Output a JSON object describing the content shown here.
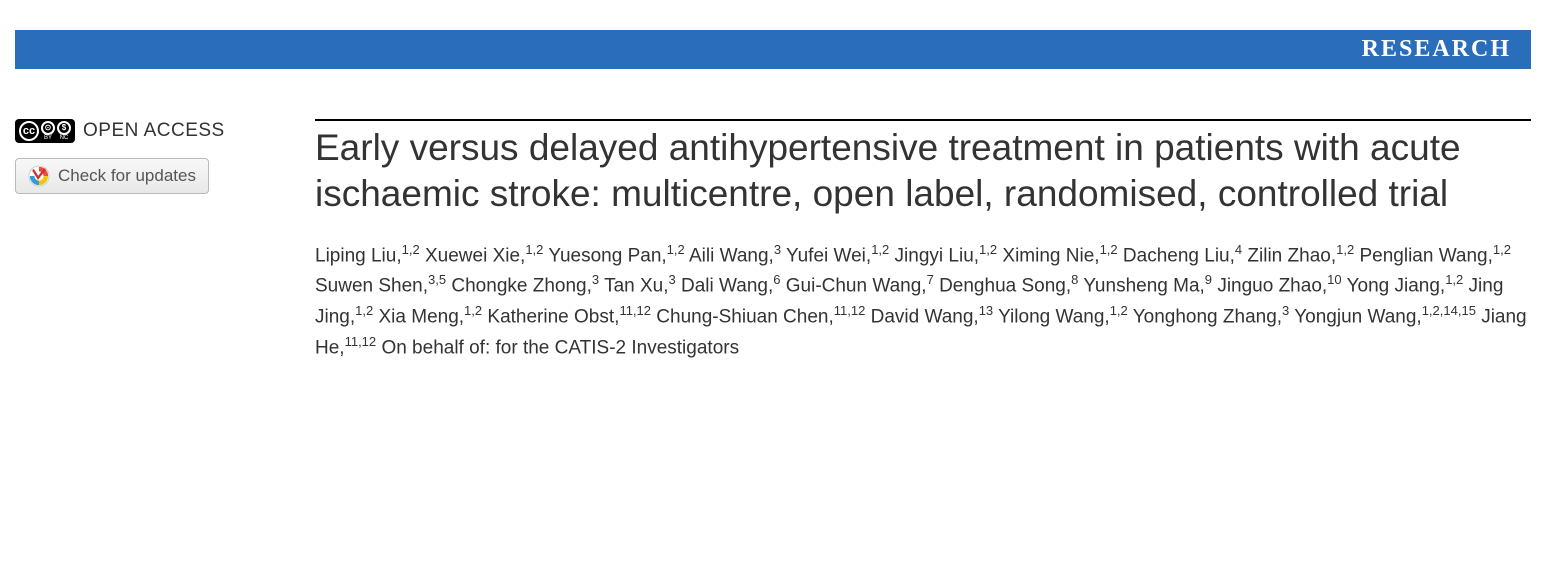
{
  "banner": {
    "label": "RESEARCH",
    "background_color": "#2a6ebb",
    "text_color": "#ffffff"
  },
  "sidebar": {
    "open_access_label": "OPEN ACCESS",
    "check_updates_label": "Check for updates"
  },
  "article": {
    "title": "Early versus delayed antihypertensive treatment in patients with acute ischaemic stroke: multicentre, open label, randomised, controlled trial",
    "authors": [
      {
        "name": "Liping Liu",
        "affil": "1,2"
      },
      {
        "name": "Xuewei Xie",
        "affil": "1,2"
      },
      {
        "name": "Yuesong Pan",
        "affil": "1,2"
      },
      {
        "name": "Aili Wang",
        "affil": "3"
      },
      {
        "name": "Yufei Wei",
        "affil": "1,2"
      },
      {
        "name": "Jingyi Liu",
        "affil": "1,2"
      },
      {
        "name": "Ximing Nie",
        "affil": "1,2"
      },
      {
        "name": "Dacheng Liu",
        "affil": "4"
      },
      {
        "name": "Zilin Zhao",
        "affil": "1,2"
      },
      {
        "name": "Penglian Wang",
        "affil": "1,2"
      },
      {
        "name": "Suwen Shen",
        "affil": "3,5"
      },
      {
        "name": "Chongke Zhong",
        "affil": "3"
      },
      {
        "name": "Tan Xu",
        "affil": "3"
      },
      {
        "name": "Dali Wang",
        "affil": "6"
      },
      {
        "name": "Gui-Chun Wang",
        "affil": "7"
      },
      {
        "name": "Denghua Song",
        "affil": "8"
      },
      {
        "name": "Yunsheng Ma",
        "affil": "9"
      },
      {
        "name": "Jinguo Zhao",
        "affil": "10"
      },
      {
        "name": "Yong Jiang",
        "affil": "1,2"
      },
      {
        "name": "Jing Jing",
        "affil": "1,2"
      },
      {
        "name": "Xia Meng",
        "affil": "1,2"
      },
      {
        "name": "Katherine Obst",
        "affil": "11,12"
      },
      {
        "name": "Chung-Shiuan Chen",
        "affil": "11,12"
      },
      {
        "name": "David Wang",
        "affil": "13"
      },
      {
        "name": "Yilong Wang",
        "affil": "1,2"
      },
      {
        "name": "Yonghong Zhang",
        "affil": "3"
      },
      {
        "name": "Yongjun Wang",
        "affil": "1,2,14,15"
      },
      {
        "name": "Jiang He",
        "affil": "11,12"
      }
    ],
    "author_suffix": "On behalf of: for the CATIS-2 Investigators"
  },
  "style": {
    "title_fontsize": 37,
    "title_color": "#333333",
    "author_fontsize": 19,
    "author_color": "#333333",
    "border_color": "#000000",
    "background_color": "#ffffff"
  }
}
